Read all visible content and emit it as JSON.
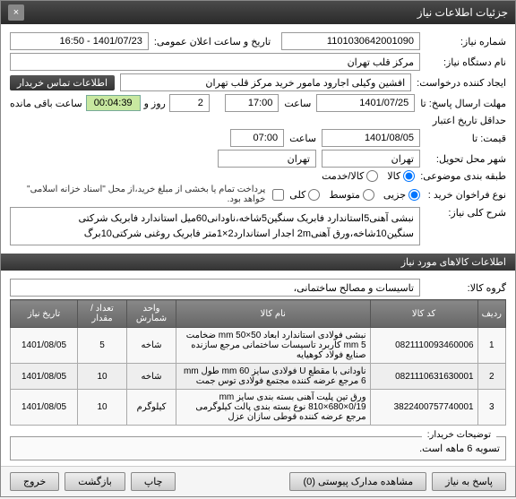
{
  "header": {
    "title": "جزئیات اطلاعات نیاز"
  },
  "labels": {
    "reqno": "شماره نیاز:",
    "pubdate": "تاریخ و ساعت اعلان عمومی:",
    "orgname": "نام دستگاه نیاز:",
    "creator": "ایجاد کننده درخواست:",
    "deadline": "مهلت ارسال پاسخ: تا",
    "hour": "ساعت",
    "remaining": "ساعت باقی مانده",
    "day": "روز و",
    "validstart": "حداقل تاریخ اعتبار",
    "price": "قیمت:  تا",
    "delivery": "شهر محل تحویل:",
    "category": "طبقه بندی موضوعی:",
    "buytype": "نوع فراخوان خرید :",
    "paynote": "پرداخت تمام یا بخشی از مبلغ خرید،از محل \"اسناد خزانه اسلامی\" خواهد بود.",
    "maindesc": "شرح کلی نیاز:",
    "goodsgroup": "گروه کالا:",
    "buyernote_lbl": "توضیحات خریدار:",
    "goodssec": "اطلاعات کالاهای مورد نیاز",
    "buyerinfo": "اطلاعات تماس خریدار"
  },
  "fields": {
    "reqno": "1101030642001090",
    "pubdate": "1401/07/23 - 16:50",
    "orgname": "مرکز قلب تهران",
    "creator": "افشین وکیلی اجارود مامور خرید مرکز قلب تهران",
    "deadline_date": "1401/07/25",
    "deadline_time": "17:00",
    "remain_days": "2",
    "remain_time": "00:04:39",
    "valid_date": "1401/08/05",
    "valid_time": "07:00",
    "delivery_city": "تهران",
    "delivery_city2": "تهران",
    "maindesc": "نبشی آهنی5استاندارد فابریک سنگین5شاخه،ناودانی60میل استاندارد فابریک شرکتی سنگین10شاخه،ورق آهنی2m اجدار استاندارد2×1متر فابریک روغنی شرکتی10برگ",
    "goodsgroup": "تاسیسات و مصالح ساختمانی،",
    "buyernote": "تسویه 6 ماهه است."
  },
  "radios": {
    "cat": [
      {
        "label": "کالا",
        "checked": true
      },
      {
        "label": "کالا/خدمت",
        "checked": false
      }
    ],
    "buytype": [
      {
        "label": "جزیی",
        "checked": true
      },
      {
        "label": "متوسط",
        "checked": false
      },
      {
        "label": "کلی",
        "checked": false
      }
    ]
  },
  "table": {
    "headers": [
      "ردیف",
      "کد کالا",
      "نام کالا",
      "واحد شمارش",
      "تعداد / مقدار",
      "تاریخ نیاز"
    ],
    "rows": [
      {
        "idx": "1",
        "code": "0821110093460006",
        "name": "نبشی فولادی استاندارد ابعاد mm 50×50 ضخامت mm 5 کاربرد تاسیسات ساختمانی مرجع سازنده صنایع فولاد کوهیایه",
        "unit": "شاخه",
        "qty": "5",
        "date": "1401/08/05"
      },
      {
        "idx": "2",
        "code": "0821110631630001",
        "name": "ناودانی با مقطع U فولادی سایز mm 60 طول mm 6 مرجع عرضه کننده مجتمع فولادی توس جمت",
        "unit": "شاخه",
        "qty": "10",
        "date": "1401/08/05"
      },
      {
        "idx": "3",
        "code": "3822400757740001",
        "name": "ورق تین پلیت آهنی بسته بندی سایز mm 810×680×0/19 نوع بسته بندی پالت کیلوگرمی مرجع عرضه کننده قوطی سازان عزل",
        "unit": "کیلوگرم",
        "qty": "10",
        "date": "1401/08/05"
      }
    ]
  },
  "footer": {
    "respond": "پاسخ به نیاز",
    "viewdocs": "مشاهده مدارک پیوستی (0)",
    "print": "چاپ",
    "back": "بازگشت",
    "exit": "خروج"
  }
}
